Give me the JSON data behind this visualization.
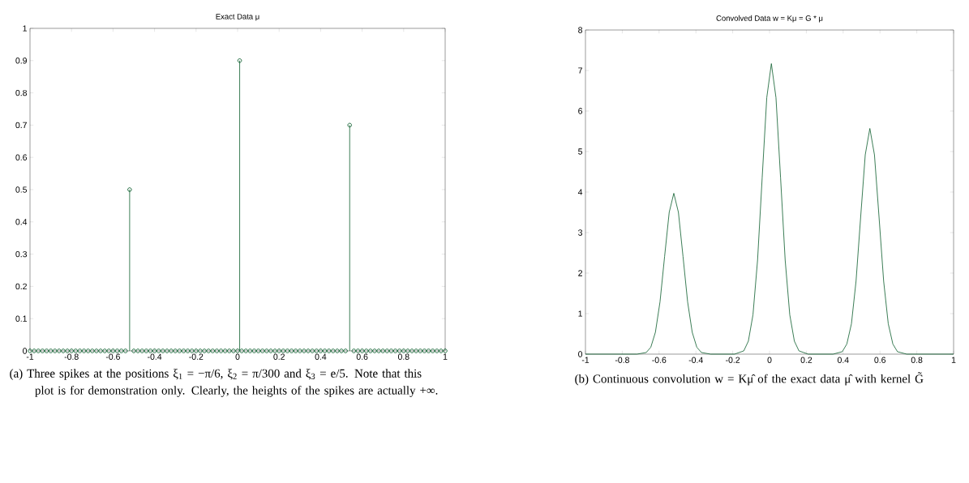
{
  "chart_data": [
    {
      "type": "lollipop",
      "title": "Exact Data μ",
      "color": "#0b5d2c",
      "marker": "circle",
      "x": [
        -1,
        -0.98,
        -0.96,
        -0.94,
        -0.92,
        -0.9,
        -0.88,
        -0.86,
        -0.84,
        -0.82,
        -0.8,
        -0.78,
        -0.76,
        -0.74,
        -0.72,
        -0.7,
        -0.68,
        -0.66,
        -0.64,
        -0.62,
        -0.6,
        -0.58,
        -0.56,
        -0.54,
        -0.52,
        -0.5,
        -0.48,
        -0.46,
        -0.44,
        -0.42,
        -0.4,
        -0.38,
        -0.36,
        -0.34,
        -0.32,
        -0.3,
        -0.28,
        -0.26,
        -0.24,
        -0.22,
        -0.2,
        -0.18,
        -0.16,
        -0.14,
        -0.12,
        -0.1,
        -0.08,
        -0.06,
        -0.04,
        -0.02,
        0,
        0.01,
        0.02,
        0.04,
        0.06,
        0.08,
        0.1,
        0.12,
        0.14,
        0.16,
        0.18,
        0.2,
        0.22,
        0.24,
        0.26,
        0.28,
        0.3,
        0.32,
        0.34,
        0.36,
        0.38,
        0.4,
        0.42,
        0.44,
        0.46,
        0.48,
        0.5,
        0.52,
        0.54,
        0.56,
        0.58,
        0.6,
        0.62,
        0.64,
        0.66,
        0.68,
        0.7,
        0.72,
        0.74,
        0.76,
        0.78,
        0.8,
        0.82,
        0.84,
        0.86,
        0.88,
        0.9,
        0.92,
        0.94,
        0.96,
        0.98,
        1
      ],
      "values": [
        0,
        0,
        0,
        0,
        0,
        0,
        0,
        0,
        0,
        0,
        0,
        0,
        0,
        0,
        0,
        0,
        0,
        0,
        0,
        0,
        0,
        0,
        0,
        0,
        0.5,
        0,
        0,
        0,
        0,
        0,
        0,
        0,
        0,
        0,
        0,
        0,
        0,
        0,
        0,
        0,
        0,
        0,
        0,
        0,
        0,
        0,
        0,
        0,
        0,
        0,
        0,
        0.9,
        0,
        0,
        0,
        0,
        0,
        0,
        0,
        0,
        0,
        0,
        0,
        0,
        0,
        0,
        0,
        0,
        0,
        0,
        0,
        0,
        0,
        0,
        0,
        0,
        0,
        0,
        0.7,
        0,
        0,
        0,
        0,
        0,
        0,
        0,
        0,
        0,
        0,
        0,
        0,
        0,
        0,
        0,
        0,
        0,
        0,
        0,
        0,
        0,
        0,
        0
      ],
      "xlim": [
        -1,
        1
      ],
      "ylim": [
        0,
        1
      ],
      "xticks": [
        -1,
        -0.8,
        -0.6,
        -0.4,
        -0.2,
        0,
        0.2,
        0.4,
        0.6,
        0.8,
        1
      ],
      "yticks": [
        0,
        0.1,
        0.2,
        0.3,
        0.4,
        0.5,
        0.6,
        0.7,
        0.8,
        0.9,
        1
      ],
      "annotations": [
        "(a) Three spikes at the positions ξ$_{1}$ = −π/6, ξ$_{2}$ = π/300 and ξ$_{3}$ = e/5. Note that this plot is for demonstration only. Clearly, the heights of the spikes are actually +∞."
      ]
    },
    {
      "type": "line",
      "title": "Convolved Data w = Kμ = G * μ",
      "color": "#0b5d2c",
      "marker": "none",
      "x": [
        -1,
        -0.72,
        -0.67,
        -0.645,
        -0.62,
        -0.595,
        -0.57,
        -0.545,
        -0.52,
        -0.495,
        -0.47,
        -0.445,
        -0.42,
        -0.395,
        -0.37,
        -0.32,
        -0.19,
        -0.14,
        -0.115,
        -0.09,
        -0.065,
        -0.04,
        -0.015,
        0.01,
        0.035,
        0.06,
        0.085,
        0.11,
        0.135,
        0.16,
        0.21,
        0.345,
        0.395,
        0.42,
        0.445,
        0.47,
        0.495,
        0.52,
        0.545,
        0.57,
        0.595,
        0.62,
        0.645,
        0.67,
        0.695,
        0.745,
        1
      ],
      "values": [
        0,
        0,
        0.04,
        0.17,
        0.54,
        1.29,
        2.41,
        3.5,
        3.97,
        3.5,
        2.41,
        1.29,
        0.54,
        0.17,
        0.04,
        0,
        0,
        0.08,
        0.32,
        0.97,
        2.32,
        4.35,
        6.33,
        7.17,
        6.33,
        4.35,
        2.32,
        0.97,
        0.32,
        0.08,
        0,
        0,
        0.06,
        0.25,
        0.75,
        1.8,
        3.38,
        4.92,
        5.57,
        4.92,
        3.38,
        1.8,
        0.75,
        0.25,
        0.06,
        0,
        0
      ],
      "xlim": [
        -1,
        1
      ],
      "ylim": [
        0,
        8
      ],
      "xticks": [
        -1,
        -0.8,
        -0.6,
        -0.4,
        -0.2,
        0,
        0.2,
        0.4,
        0.6,
        0.8,
        1
      ],
      "yticks": [
        0,
        1,
        2,
        3,
        4,
        5,
        6,
        7,
        8
      ],
      "annotations": [
        "(b) Continuous convolution w = Kμ̂ of the exact data μ̂ with kernel G̃"
      ]
    }
  ]
}
